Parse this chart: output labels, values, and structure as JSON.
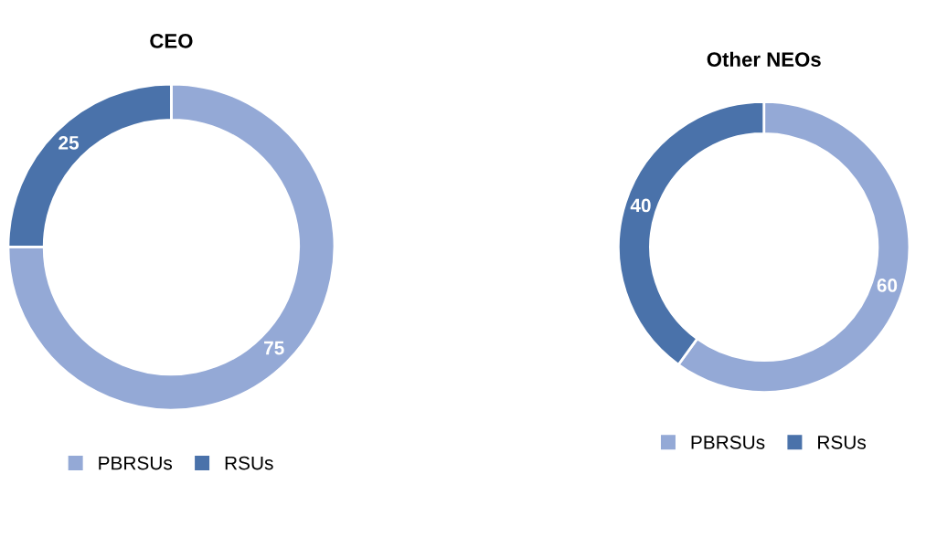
{
  "chart_data": [
    {
      "type": "donut",
      "title": "CEO",
      "categories": [
        "PBRSUs",
        "RSUs"
      ],
      "values": [
        75,
        25
      ],
      "colors": [
        "#94a9d6",
        "#4a72aa"
      ],
      "data_labels": true,
      "legend": "bottom"
    },
    {
      "type": "donut",
      "title": "Other NEOs",
      "categories": [
        "PBRSUs",
        "RSUs"
      ],
      "values": [
        60,
        40
      ],
      "colors": [
        "#94a9d6",
        "#4a72aa"
      ],
      "data_labels": true,
      "legend": "bottom"
    }
  ]
}
